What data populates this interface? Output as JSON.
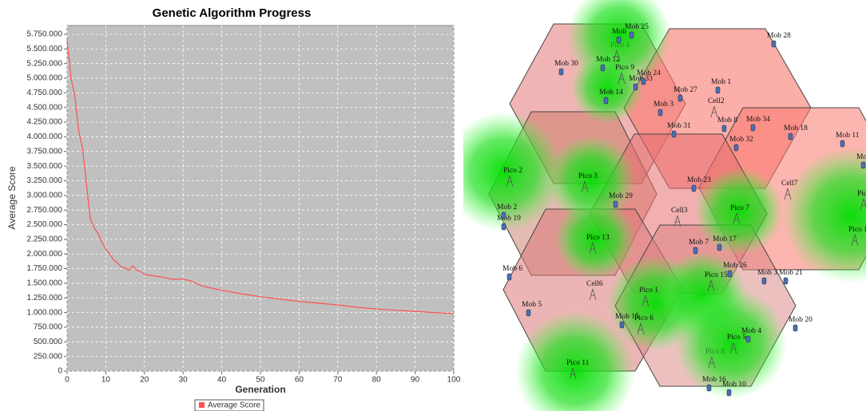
{
  "chart_data": {
    "type": "line",
    "title": "Genetic Algorithm Progress",
    "x_label": "Generation",
    "y_label": "Average Score",
    "x": [
      0,
      1,
      2,
      3,
      4,
      5,
      6,
      7,
      8,
      9,
      10,
      11,
      12,
      13,
      14,
      15,
      16,
      17,
      18,
      19,
      20,
      22,
      25,
      27,
      30,
      32,
      35,
      40,
      45,
      50,
      55,
      60,
      65,
      70,
      75,
      80,
      85,
      90,
      95,
      100
    ],
    "series": [
      {
        "name": "Average Score",
        "color": "#ff5050",
        "values": [
          5650000,
          5000000,
          4700000,
          4100000,
          3800000,
          3200000,
          2600000,
          2450000,
          2350000,
          2200000,
          2080000,
          2000000,
          1900000,
          1850000,
          1780000,
          1760000,
          1720000,
          1800000,
          1720000,
          1700000,
          1650000,
          1630000,
          1600000,
          1570000,
          1570000,
          1540000,
          1450000,
          1380000,
          1320000,
          1270000,
          1230000,
          1190000,
          1160000,
          1130000,
          1090000,
          1060000,
          1040000,
          1020000,
          1000000,
          980000
        ]
      }
    ],
    "xlim": [
      0,
      100
    ],
    "xticks": [
      0,
      10,
      20,
      30,
      40,
      50,
      60,
      70,
      80,
      90,
      100
    ],
    "ylim": [
      0,
      5900000
    ],
    "yticks": [
      0,
      {
        "value": 250000,
        "label": "250.000"
      },
      {
        "value": 500000,
        "label": "500.000"
      },
      {
        "value": 750000,
        "label": "750.000"
      },
      {
        "value": 1000000,
        "label": "1.000.000"
      },
      {
        "value": 1250000,
        "label": "1.250.000"
      },
      {
        "value": 1500000,
        "label": "1.500.000"
      },
      {
        "value": 1750000,
        "label": "1.750.000"
      },
      {
        "value": 2000000,
        "label": "2.000.000"
      },
      {
        "value": 2250000,
        "label": "2.250.000"
      },
      {
        "value": 2500000,
        "label": "2.500.000"
      },
      {
        "value": 2750000,
        "label": "2.750.000"
      },
      {
        "value": 3000000,
        "label": "3.000.000"
      },
      {
        "value": 3250000,
        "label": "3.250.000"
      },
      {
        "value": 3500000,
        "label": "3.500.000"
      },
      {
        "value": 3750000,
        "label": "3.750.000"
      },
      {
        "value": 4000000,
        "label": "4.000.000"
      },
      {
        "value": 4250000,
        "label": "4.250.000"
      },
      {
        "value": 4500000,
        "label": "4.500.000"
      },
      {
        "value": 4750000,
        "label": "4.750.000"
      },
      {
        "value": 5000000,
        "label": "5.000.000"
      },
      {
        "value": 5250000,
        "label": "5.250.000"
      },
      {
        "value": 5500000,
        "label": "5.500.000"
      },
      {
        "value": 5750000,
        "label": "5.750.000"
      }
    ],
    "grid": true,
    "legend": "bottom"
  },
  "network": {
    "labels": [
      "Mob",
      "Mob 25",
      "Pico 4",
      "Mob 28",
      "Mob 30",
      "Mob 12",
      "Pico 9",
      "Mob 24",
      "Mob 33",
      "Mob 1",
      "Mob 27",
      "Mob 14",
      "Cell2",
      "Mob 3",
      "Mob 8",
      "Mob 34",
      "Mob 18",
      "Mob 11",
      "Mob 31",
      "Mob 32",
      "Mob",
      "Pico 2",
      "Pico 3",
      "Mob 23",
      "Cell7",
      "Mob 29",
      "Mob 2",
      "Pico 7",
      "Cell3",
      "Mob 19",
      "Pic",
      "Pico 1",
      "Pico 13",
      "Mob 7",
      "Mob 17",
      "Mob 26",
      "Pico 15",
      "Mob 6",
      "Mob 3",
      "Mob 21",
      "Cell6",
      "Pico 1",
      "Mob 5",
      "Mob 15",
      "Pico 6",
      "Mob 20",
      "Mob 4",
      "Pico 5",
      "Pico 8",
      "Pico 11",
      "Mob 16",
      "Mob 10"
    ]
  }
}
